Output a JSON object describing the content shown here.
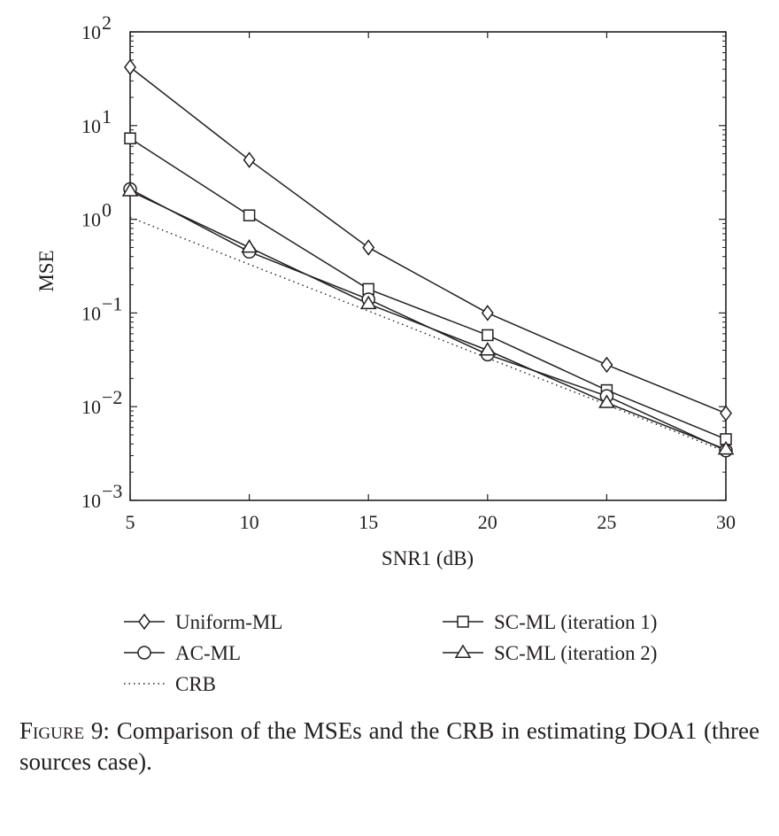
{
  "chart_data": {
    "type": "line",
    "title": "",
    "xlabel": "SNR1 (dB)",
    "ylabel": "MSE",
    "x": [
      5,
      10,
      15,
      20,
      25,
      30
    ],
    "xlim": [
      5,
      30
    ],
    "xticks": [
      "5",
      "10",
      "15",
      "20",
      "25",
      "30"
    ],
    "ylim": [
      0.001,
      100
    ],
    "yscale": "log",
    "yticks": [
      {
        "value": 100,
        "base": "10",
        "exp": "2"
      },
      {
        "value": 10,
        "base": "10",
        "exp": "1"
      },
      {
        "value": 1,
        "base": "10",
        "exp": "0"
      },
      {
        "value": 0.1,
        "base": "10",
        "exp": "−1"
      },
      {
        "value": 0.01,
        "base": "10",
        "exp": "−2"
      },
      {
        "value": 0.001,
        "base": "10",
        "exp": "−3"
      }
    ],
    "grid": false,
    "legend_position": "below",
    "series": [
      {
        "name": "Uniform-ML",
        "marker": "diamond",
        "style": "solid",
        "values": [
          42,
          4.3,
          0.5,
          0.1,
          0.028,
          0.0085
        ]
      },
      {
        "name": "SC-ML (iteration 1)",
        "marker": "square",
        "style": "solid",
        "values": [
          7.3,
          1.1,
          0.18,
          0.058,
          0.015,
          0.0045
        ]
      },
      {
        "name": "AC-ML",
        "marker": "circle",
        "style": "solid",
        "values": [
          2.1,
          0.45,
          0.14,
          0.036,
          0.013,
          0.0034
        ]
      },
      {
        "name": "SC-ML (iteration 2)",
        "marker": "triangle",
        "style": "solid",
        "values": [
          2.0,
          0.5,
          0.125,
          0.04,
          0.011,
          0.0035
        ]
      },
      {
        "name": "CRB",
        "marker": "none",
        "style": "dotted",
        "values": [
          1.05,
          0.33,
          0.105,
          0.033,
          0.0105,
          0.0033
        ]
      }
    ]
  },
  "caption": {
    "figure_label": "Figure 9:",
    "text": " Comparison of the MSEs and the CRB in estimating DOA1 (three sources case)."
  }
}
